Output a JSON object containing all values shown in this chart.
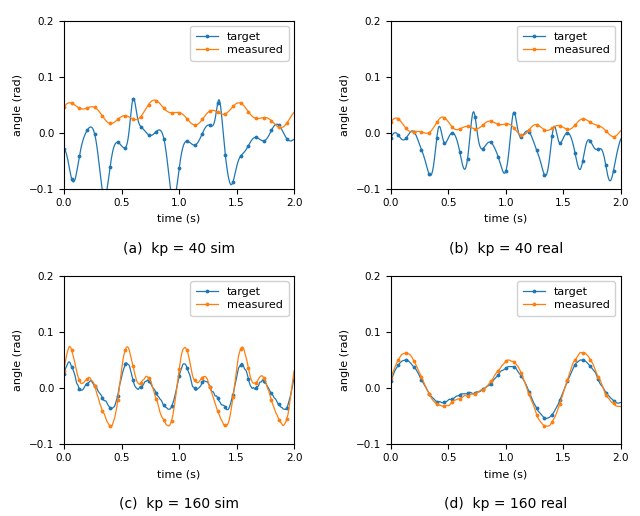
{
  "title_a": "(a)  kp = 40 sim",
  "title_b": "(b)  kp = 40 real",
  "title_c": "(c)  kp = 160 sim",
  "title_d": "(d)  kp = 160 real",
  "xlabel": "time (s)",
  "ylabel": "angle (rad)",
  "ylim": [
    -0.1,
    0.2
  ],
  "xlim": [
    0.0,
    2.0
  ],
  "target_color": "#1f77b4",
  "measured_color": "#ff7f0e",
  "background_color": "#ffffff",
  "figsize": [
    6.4,
    5.16
  ],
  "dpi": 100
}
